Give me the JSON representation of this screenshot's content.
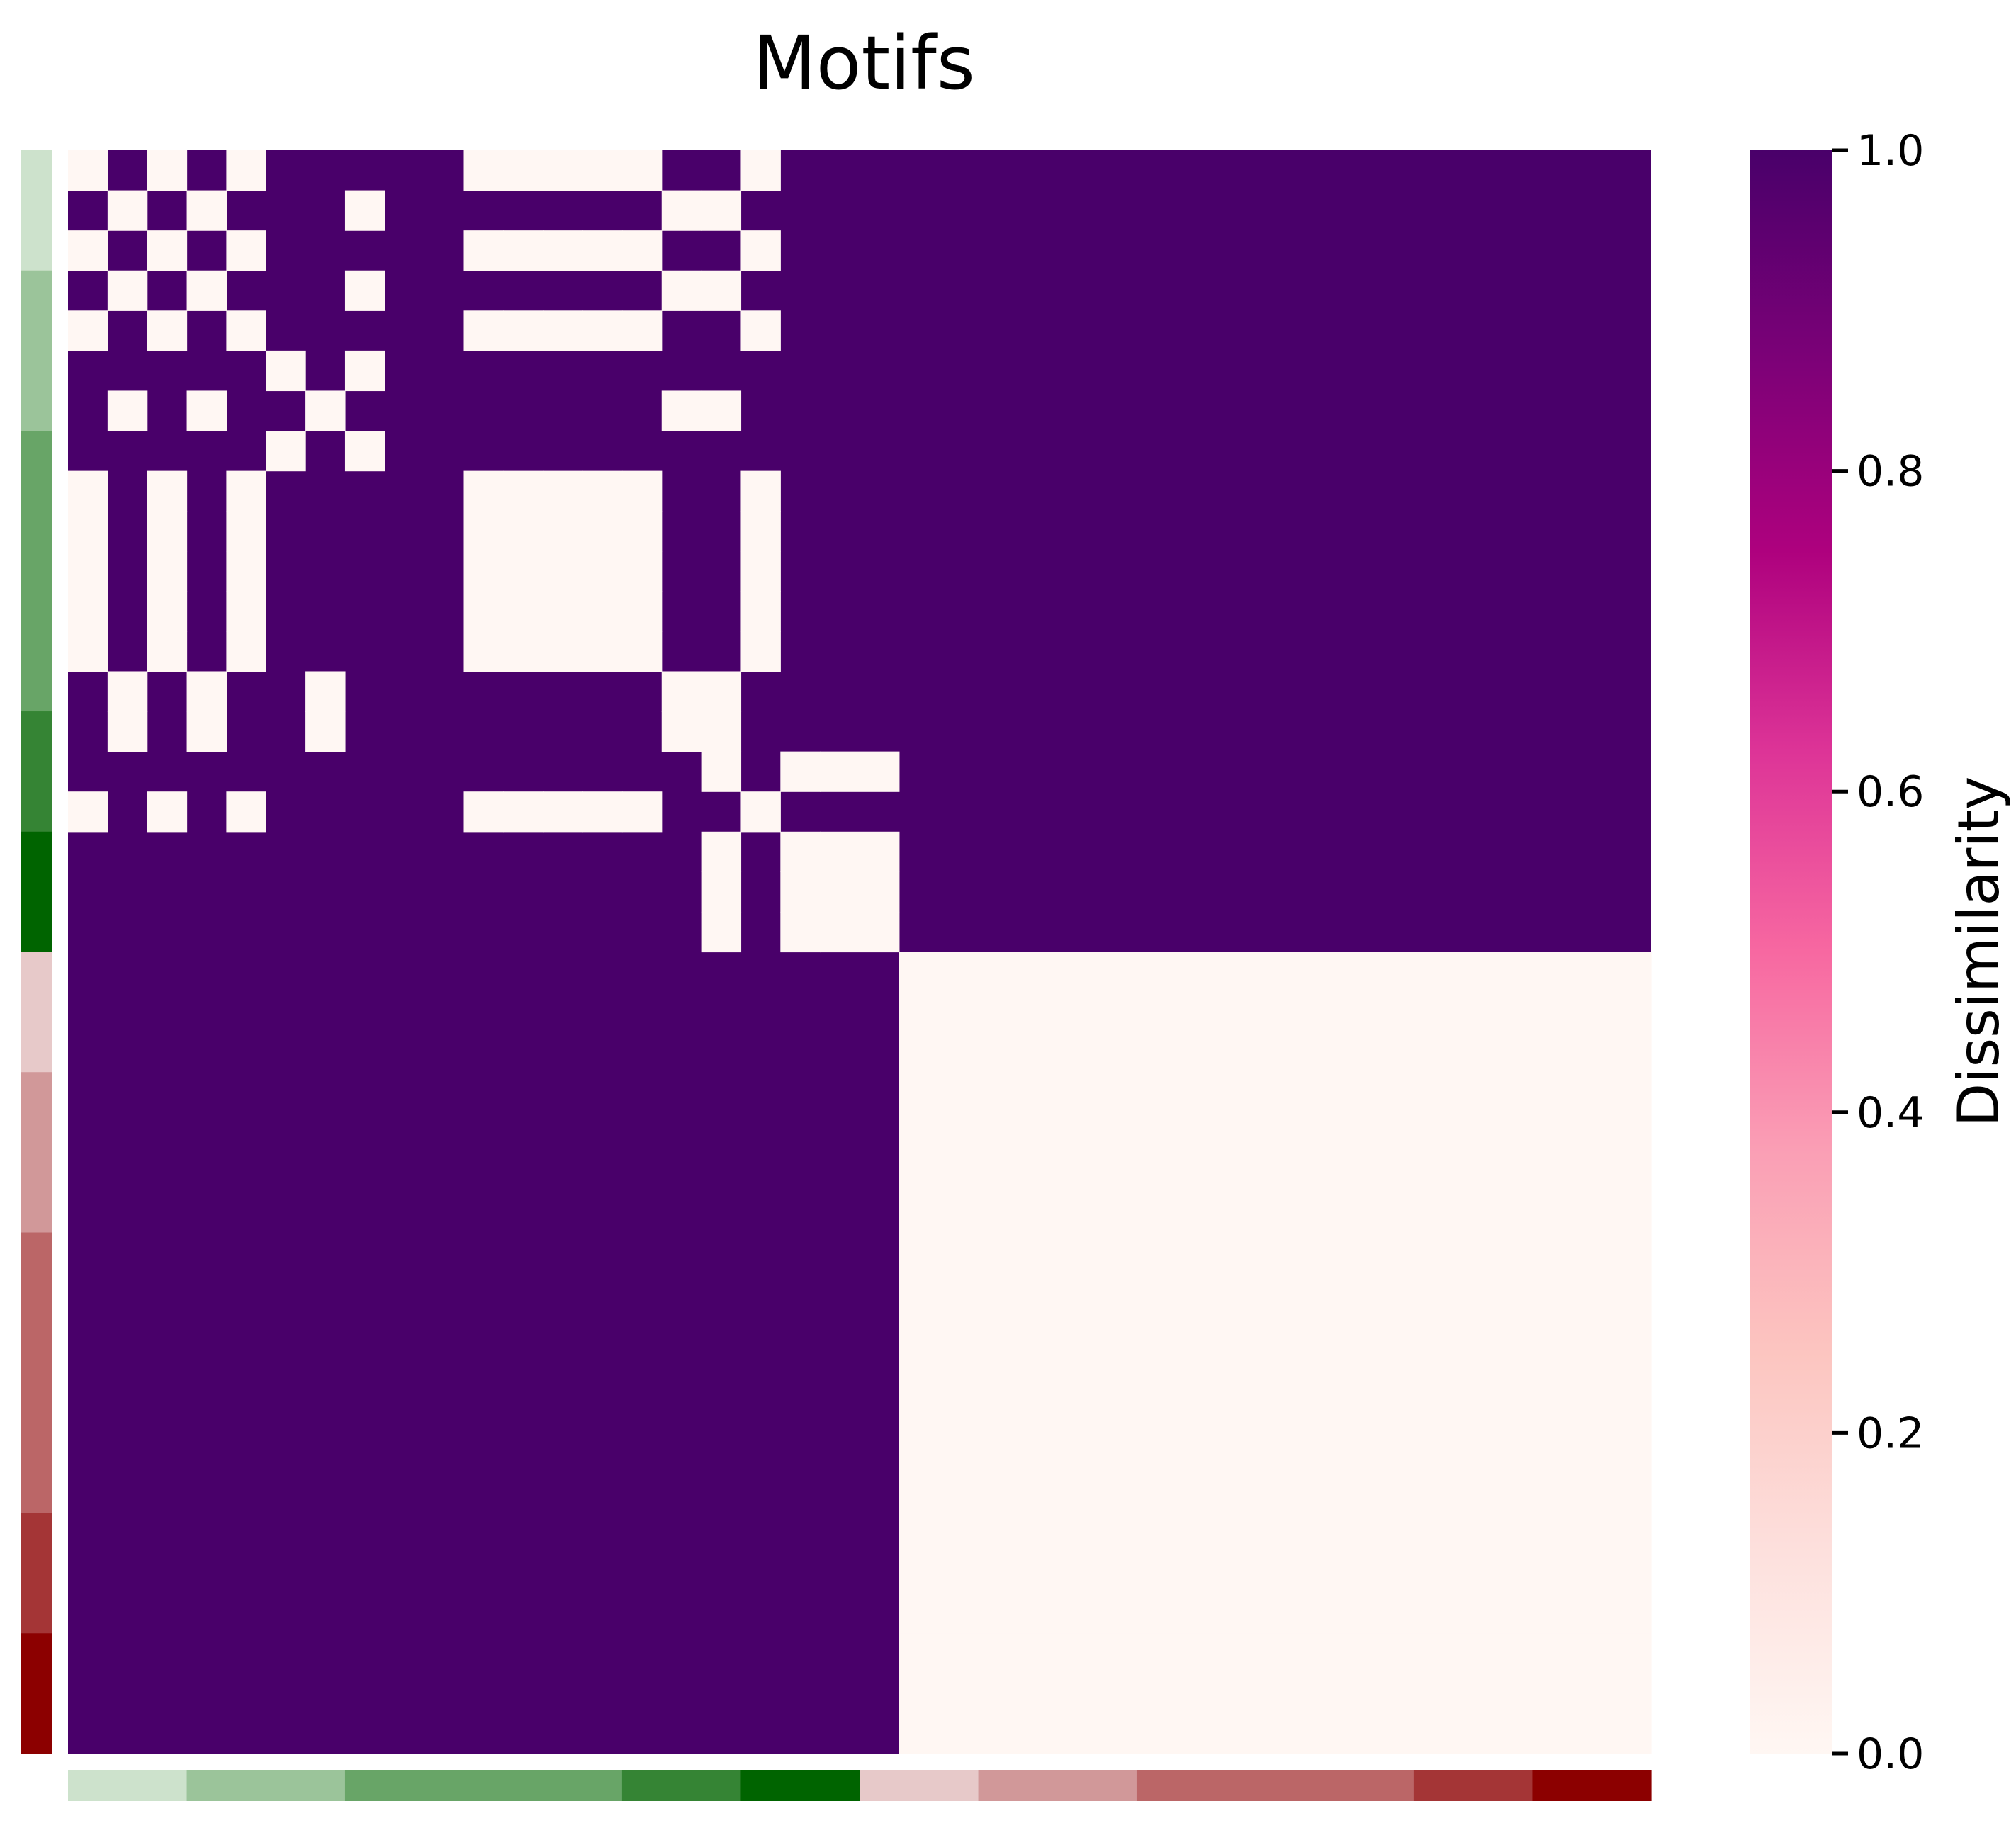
{
  "chart_data": {
    "type": "heatmap",
    "title": "Motifs",
    "colorbar": {
      "label": "Dissimilarity",
      "range": [
        0.0,
        1.0
      ],
      "ticks": [
        0.0,
        0.2,
        0.4,
        0.6,
        0.8,
        1.0
      ],
      "tick_labels": [
        "0.0",
        "0.2",
        "0.4",
        "0.6",
        "0.8",
        "1.0"
      ],
      "colormap_stops": [
        "#fff7f3",
        "#fde0dd",
        "#fcc5c0",
        "#fa9fb5",
        "#f768a1",
        "#dd3497",
        "#ae017e",
        "#7a0177",
        "#49006a"
      ]
    },
    "n": 40,
    "group_colors": [
      "#cde2cc",
      "#9bc49a",
      "#68a567",
      "#358434",
      "#006400",
      "#e7c9c9",
      "#d19899",
      "#bb6667",
      "#a43536",
      "#8c0000"
    ],
    "group_sizes": [
      3,
      4,
      7,
      3,
      3,
      3,
      4,
      7,
      3,
      3
    ],
    "matrix_rows": [
      "0101011111000001101111111111111111111111",
      "1010111011111110011111111111111111111111",
      "0101011111000001101111111111111111111111",
      "1010111011111110011111111111111111111111",
      "0101011111000001101111111111111111111111",
      "1111101011111111111111111111111111111111",
      "1010110111111110011111111111111111111111",
      "1111101011111111111111111111111111111111",
      "0101011111000001101111111111111111111111",
      "0101011111000001101111111111111111111111",
      "0101011111000001101111111111111111111111",
      "0101011111000001101111111111111111111111",
      "0101011111000001101111111111111111111111",
      "1010110111111110011111111111111111111111",
      "1010110111111110011111111111111111111111",
      "1111111111111111010001111111111111111111",
      "0101011111000001101111111111111111111111",
      "1111111111111111010001111111111111111111",
      "1111111111111111010001111111111111111111",
      "1111111111111111010001111111111111111111",
      "1111111111111111111110000000000000000000",
      "1111111111111111111110000000000000000000",
      "1111111111111111111110000000000000000000",
      "1111111111111111111110000000000000000000",
      "1111111111111111111110000000000000000000",
      "1111111111111111111110000000000000000000",
      "1111111111111111111110000000000000000000",
      "1111111111111111111110000000000000000000",
      "1111111111111111111110000000000000000000",
      "1111111111111111111110000000000000000000",
      "1111111111111111111110000000000000000000",
      "1111111111111111111110000000000000000000",
      "1111111111111111111110000000000000000000",
      "1111111111111111111110000000000000000000",
      "1111111111111111111110000000000000000000",
      "1111111111111111111110000000000000000000",
      "1111111111111111111110000000000000000000",
      "1111111111111111111110000000000000000000",
      "1111111111111111111110000000000000000000",
      "1111111111111111111110000000000000000000"
    ]
  }
}
